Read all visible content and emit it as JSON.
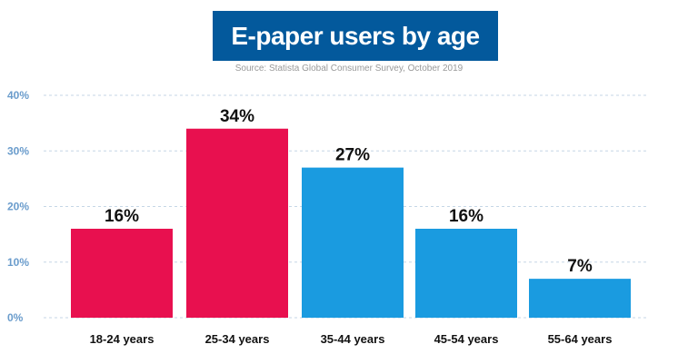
{
  "chart_data": {
    "type": "bar",
    "title": "E-paper users by age",
    "subtitle": "Source: Statista Global Consumer Survey, October 2019",
    "categories": [
      "18-24 years",
      "25-34 years",
      "35-44 years",
      "45-54 years",
      "55-64 years"
    ],
    "values": [
      16,
      34,
      27,
      16,
      7
    ],
    "data_labels": [
      "16%",
      "34%",
      "27%",
      "16%",
      "7%"
    ],
    "colors": [
      "#e8104f",
      "#e8104f",
      "#1a9be0",
      "#1a9be0",
      "#1a9be0"
    ],
    "yticks": [
      0,
      10,
      20,
      30,
      40
    ],
    "ytick_labels": [
      "0%",
      "10%",
      "20%",
      "30%",
      "40%"
    ],
    "ylim": [
      0,
      40
    ],
    "xlabel": "",
    "ylabel": "",
    "grid": true
  }
}
